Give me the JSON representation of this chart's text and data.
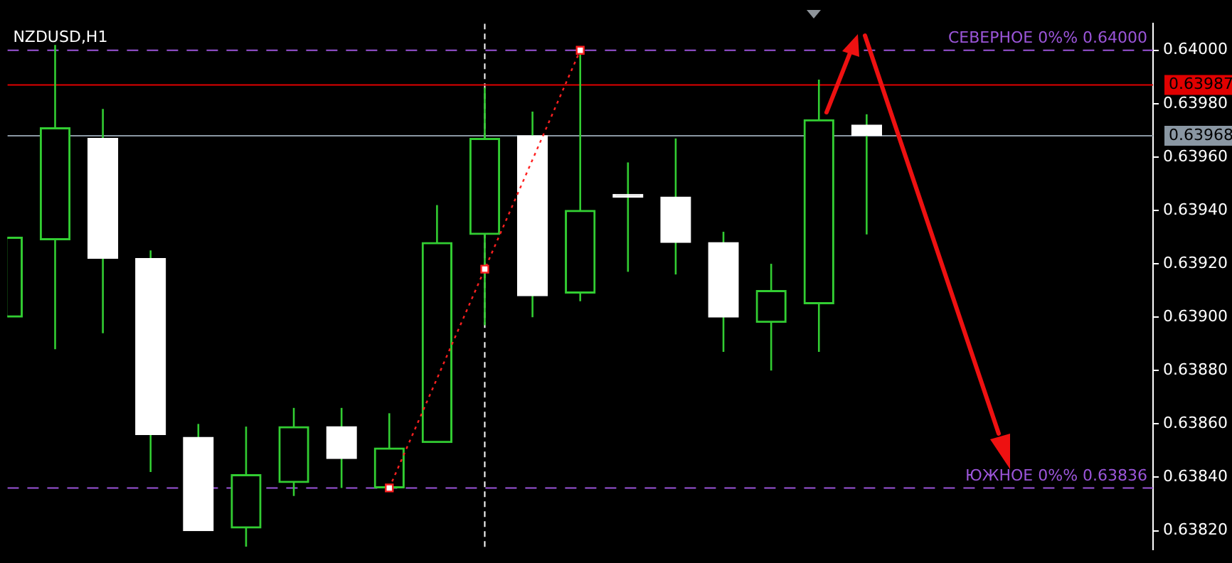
{
  "chart_data": {
    "type": "candlestick",
    "title": "NZDUSD,H1",
    "categories": [
      null,
      null,
      null,
      null,
      null,
      null,
      null,
      null,
      null,
      null,
      null,
      null,
      null,
      null,
      null,
      null,
      null,
      null,
      null,
      null,
      null,
      null,
      null,
      null,
      null
    ],
    "ohlc": [
      [
        0.639,
        0.6393,
        0.639,
        0.6393
      ],
      [
        0.63929,
        0.64002,
        0.63888,
        0.63971
      ],
      [
        0.63967,
        0.63978,
        0.63894,
        0.63922
      ],
      [
        0.63922,
        0.63925,
        0.63842,
        0.63856
      ],
      [
        0.63855,
        0.6386,
        0.6382,
        0.6382
      ],
      [
        0.63821,
        0.63859,
        0.63814,
        0.63841
      ],
      [
        0.63838,
        0.63866,
        0.63833,
        0.63859
      ],
      [
        0.63859,
        0.63866,
        0.63836,
        0.63847
      ],
      [
        0.63836,
        0.63864,
        0.63836,
        0.63851
      ],
      [
        0.63853,
        0.63942,
        0.63853,
        0.63928
      ],
      [
        0.63931,
        0.63986,
        0.63897,
        0.63967
      ],
      [
        0.63968,
        0.63977,
        0.639,
        0.63908
      ],
      [
        0.63909,
        0.64,
        0.63906,
        0.6394
      ],
      [
        0.63946,
        0.63958,
        0.63917,
        0.63945
      ],
      [
        0.63945,
        0.63967,
        0.63916,
        0.63928
      ],
      [
        0.63928,
        0.63932,
        0.63887,
        0.639
      ],
      [
        0.63898,
        0.6392,
        0.6388,
        0.6391
      ],
      [
        0.63905,
        0.63989,
        0.63887,
        0.63974
      ],
      [
        0.63972,
        0.63976,
        0.63931,
        0.63968
      ],
      null,
      null,
      null,
      null,
      null,
      null
    ],
    "color": "#32cd32",
    "colors": [
      "#32cd32",
      "#32cd32",
      "#ffffff",
      "#ffffff",
      "#ffffff",
      "#32cd32",
      "#32cd32",
      "#ffffff",
      "#32cd32",
      "#32cd32",
      "#32cd32",
      "#ffffff",
      "#32cd32",
      "#ffffff",
      "#ffffff",
      "#ffffff",
      "#32cd32",
      "#32cd32",
      "#ffffff",
      null,
      null,
      null,
      null,
      null,
      null
    ],
    "series": [
      {
        "type": "line",
        "color": "#ff2020",
        "marker": "square",
        "line_style": "dotted",
        "values": [
          null,
          null,
          null,
          null,
          null,
          null,
          null,
          null,
          0.63836,
          null,
          0.63918,
          null,
          0.64,
          null,
          null,
          null,
          null,
          null,
          null,
          null,
          null,
          null,
          null,
          null,
          null
        ]
      }
    ],
    "ylim": [
      0.63813,
      0.6401
    ],
    "yticks": [
      {
        "value": 0.6382,
        "label": "0.63820"
      },
      {
        "value": 0.6384,
        "label": "0.63840"
      },
      {
        "value": 0.6386,
        "label": "0.63860"
      },
      {
        "value": 0.6388,
        "label": "0.63880"
      },
      {
        "value": 0.639,
        "label": "0.63900"
      },
      {
        "value": 0.6392,
        "label": "0.63920"
      },
      {
        "value": 0.6394,
        "label": "0.63940"
      },
      {
        "value": 0.6396,
        "label": "0.63960"
      },
      {
        "value": 0.6398,
        "label": "0.63980"
      },
      {
        "value": 0.64,
        "label": "0.64000"
      }
    ],
    "ref_lines": [
      {
        "axis": "y",
        "value": 0.63987,
        "label": "0.63987",
        "color": "#e00000",
        "line_style": "solid"
      },
      {
        "axis": "y",
        "value": 0.63968,
        "label": "0.63968",
        "color": "#8a97a3",
        "line_style": "solid"
      },
      {
        "axis": "y",
        "value": 0.64,
        "label": "СЕВЕРНОЕ 0%% 0.64000",
        "color": "#9b55d9",
        "line_style": "dashed"
      },
      {
        "axis": "y",
        "value": 0.63836,
        "label": "ЮЖНОЕ 0%% 0.63836",
        "color": "#9b55d9",
        "line_style": "dashed"
      }
    ],
    "grid": false,
    "legend": false,
    "tick_labels": "y"
  }
}
